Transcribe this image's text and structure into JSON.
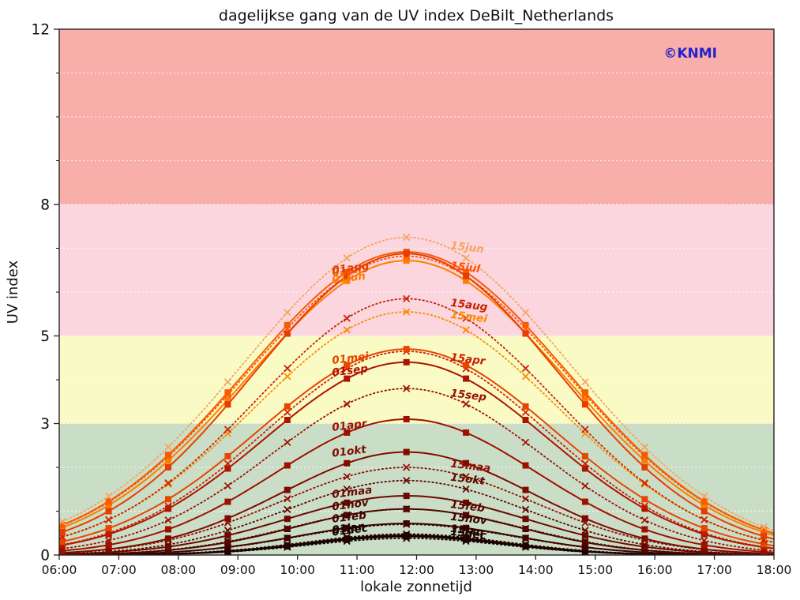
{
  "title": "dagelijkse gang van de UV index DeBilt_Netherlands",
  "copyright": "©KNMI",
  "axes": {
    "x": {
      "label": "lokale zonnetijd",
      "tick_hours": [
        6,
        7,
        8,
        9,
        10,
        11,
        12,
        13,
        14,
        15,
        16,
        17,
        18
      ],
      "tick_labels": [
        "06:00",
        "07:00",
        "08:00",
        "09:00",
        "10:00",
        "11:00",
        "12:00",
        "13:00",
        "14:00",
        "15:00",
        "16:00",
        "17:00",
        "18:00"
      ],
      "range": [
        6,
        18
      ]
    },
    "y": {
      "label": "UV index",
      "major_ticks": [
        0,
        3,
        5,
        8,
        12
      ],
      "minor_ticks": [
        1,
        2,
        4,
        6,
        7,
        9,
        10,
        11
      ],
      "range": [
        0,
        12
      ],
      "gridlines": [
        1,
        2,
        3,
        4,
        5,
        6,
        7,
        8,
        9,
        10,
        11
      ]
    }
  },
  "bands": [
    {
      "name": "band-green",
      "from": 0,
      "to": 3,
      "color": "#CADEC7"
    },
    {
      "name": "band-yellow",
      "from": 3,
      "to": 5,
      "color": "#FAFAC4"
    },
    {
      "name": "band-pink",
      "from": 5,
      "to": 8,
      "color": "#FBD6DF"
    },
    {
      "name": "band-red",
      "from": 8,
      "to": 12,
      "color": "#F8AEA9"
    }
  ],
  "grid_color": "#FFFFFF",
  "copyright_color": "#2121CE",
  "chart_data": {
    "type": "line",
    "x_range": [
      6,
      18
    ],
    "y_range": [
      0,
      12
    ],
    "center_hour": 11.83,
    "model": "uv(t) = peak_uv * exp(-((t - center_hour)/sigma_h)^2)",
    "marker_hours": [
      6.05,
      6.83,
      7.83,
      8.83,
      9.83,
      10.83,
      11.83,
      12.83,
      13.83,
      14.83,
      15.83,
      16.83,
      17.83
    ],
    "series": [
      {
        "name": "01dec",
        "line": "solid",
        "marker": "square",
        "color": "#0E0000",
        "peak_uv": 0.42,
        "sigma_h": 2.3,
        "label": {
          "side": "left",
          "uv": 0.44
        }
      },
      {
        "name": "15dec",
        "line": "dotted",
        "marker": "x",
        "color": "#160100",
        "peak_uv": 0.38,
        "sigma_h": 2.3,
        "label": {
          "side": "right",
          "uv": 0.46
        }
      },
      {
        "name": "01jan",
        "line": "solid",
        "marker": "square",
        "color": "#1D0100",
        "peak_uv": 0.45,
        "sigma_h": 2.35,
        "label": {
          "side": "left",
          "uv": 0.49
        }
      },
      {
        "name": "15jan",
        "line": "dotted",
        "marker": "x",
        "color": "#2C0200",
        "peak_uv": 0.48,
        "sigma_h": 2.4,
        "label": {
          "side": "right",
          "uv": 0.53
        }
      },
      {
        "name": "15nov",
        "line": "dotted",
        "marker": "x",
        "color": "#350300",
        "peak_uv": 0.7,
        "sigma_h": 2.55,
        "label": {
          "side": "right",
          "uv": 0.8
        }
      },
      {
        "name": "01feb",
        "line": "solid",
        "marker": "square",
        "color": "#3D0300",
        "peak_uv": 0.72,
        "sigma_h": 2.55,
        "label": {
          "side": "left",
          "uv": 0.74
        }
      },
      {
        "name": "01nov",
        "line": "solid",
        "marker": "square",
        "color": "#4D0500",
        "peak_uv": 1.05,
        "sigma_h": 2.65,
        "label": {
          "side": "left",
          "uv": 1.02
        }
      },
      {
        "name": "15feb",
        "line": "dotted",
        "marker": "x",
        "color": "#570600",
        "peak_uv": 1.05,
        "sigma_h": 2.7,
        "label": {
          "side": "right",
          "uv": 1.08
        }
      },
      {
        "name": "01maa",
        "line": "solid",
        "marker": "square",
        "color": "#6C0900",
        "peak_uv": 1.35,
        "sigma_h": 2.85,
        "label": {
          "side": "left",
          "uv": 1.3
        }
      },
      {
        "name": "15okt",
        "line": "dotted",
        "marker": "x",
        "color": "#600700",
        "peak_uv": 1.7,
        "sigma_h": 2.85,
        "label": {
          "side": "right",
          "uv": 1.7
        }
      },
      {
        "name": "15maa",
        "line": "dotted",
        "marker": "x",
        "color": "#8C0E00",
        "peak_uv": 2.0,
        "sigma_h": 3.0,
        "label": {
          "side": "right",
          "uv": 2.01
        }
      },
      {
        "name": "01okt",
        "line": "solid",
        "marker": "square",
        "color": "#7F0B00",
        "peak_uv": 2.35,
        "sigma_h": 2.95,
        "label": {
          "side": "left",
          "uv": 2.24
        }
      },
      {
        "name": "01apr",
        "line": "solid",
        "marker": "square",
        "color": "#9E1100",
        "peak_uv": 3.1,
        "sigma_h": 3.1,
        "label": {
          "side": "left",
          "uv": 2.83
        }
      },
      {
        "name": "15sep",
        "line": "dotted",
        "marker": "x",
        "color": "#9C1000",
        "peak_uv": 3.8,
        "sigma_h": 3.2,
        "label": {
          "side": "right",
          "uv": 3.62
        }
      },
      {
        "name": "01sep",
        "line": "solid",
        "marker": "square",
        "color": "#AD1500",
        "peak_uv": 4.4,
        "sigma_h": 3.35,
        "label": {
          "side": "left",
          "uv": 4.08
        }
      },
      {
        "name": "15apr",
        "line": "dotted",
        "marker": "x",
        "color": "#C91C00",
        "peak_uv": 4.65,
        "sigma_h": 3.35,
        "label": {
          "side": "right",
          "uv": 4.44
        }
      },
      {
        "name": "01mei",
        "line": "solid",
        "marker": "square",
        "color": "#E64600",
        "peak_uv": 4.7,
        "sigma_h": 3.5,
        "label": {
          "side": "left",
          "uv": 4.36
        }
      },
      {
        "name": "15mei",
        "line": "dotted",
        "marker": "x",
        "color": "#FB8A00",
        "peak_uv": 5.55,
        "sigma_h": 3.6,
        "label": {
          "side": "right",
          "uv": 5.41
        }
      },
      {
        "name": "15aug",
        "line": "dotted",
        "marker": "x",
        "color": "#C62200",
        "peak_uv": 5.85,
        "sigma_h": 3.55,
        "label": {
          "side": "right",
          "uv": 5.68
        }
      },
      {
        "name": "01jun",
        "line": "solid",
        "marker": "square",
        "color": "#FF7D00",
        "peak_uv": 6.72,
        "sigma_h": 3.75,
        "label": {
          "side": "left",
          "uv": 6.2
        }
      },
      {
        "name": "15jul",
        "line": "dotted",
        "marker": "x",
        "color": "#FF5000",
        "peak_uv": 6.82,
        "sigma_h": 3.8,
        "label": {
          "side": "right",
          "uv": 6.53
        }
      },
      {
        "name": "01jul",
        "line": "solid",
        "marker": "square",
        "color": "#F85C00",
        "peak_uv": 6.92,
        "sigma_h": 3.8,
        "label": {
          "side": "left",
          "uv": 6.37
        }
      },
      {
        "name": "01aug",
        "line": "solid",
        "marker": "square",
        "color": "#E63D00",
        "peak_uv": 6.88,
        "sigma_h": 3.6,
        "label": {
          "side": "left",
          "uv": 6.42
        }
      },
      {
        "name": "15jun",
        "line": "dotted",
        "marker": "x",
        "color": "#F4A460",
        "peak_uv": 7.25,
        "sigma_h": 3.85,
        "label": {
          "side": "right",
          "uv": 6.99
        }
      }
    ]
  }
}
